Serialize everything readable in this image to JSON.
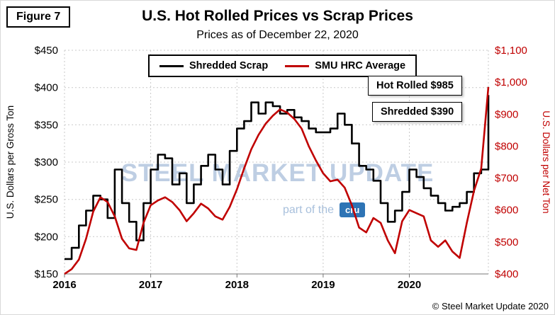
{
  "figure_label": "Figure 7",
  "title": "U.S. Hot Rolled Prices vs Scrap Prices",
  "subtitle": "Prices as of December 22, 2020",
  "legend": {
    "shredded": "Shredded Scrap",
    "hrc": "SMU HRC Average"
  },
  "annotations": {
    "hot_rolled": "Hot Rolled $985",
    "shredded": "Shredded $390"
  },
  "watermark": {
    "line1": "STEEL MARKET UPDATE",
    "part_text": "part of the",
    "cru_text": "cru"
  },
  "copyright": "© Steel Market Update 2020",
  "colors": {
    "scrap": "#000000",
    "hrc": "#C00000",
    "grid": "#c9c9c9",
    "cru_blue": "#2e74b5"
  },
  "left_axis": {
    "title": "U.S. Dollars per Gross Ton",
    "min": 150,
    "max": 450,
    "ticks": [
      {
        "label": "$150",
        "value": 150
      },
      {
        "label": "$200",
        "value": 200
      },
      {
        "label": "$250",
        "value": 250
      },
      {
        "label": "$300",
        "value": 300
      },
      {
        "label": "$350",
        "value": 350
      },
      {
        "label": "$400",
        "value": 400
      },
      {
        "label": "$450",
        "value": 450
      }
    ]
  },
  "right_axis": {
    "title": "U.S. Dollars per Net Ton",
    "min": 400,
    "max": 1100,
    "ticks": [
      {
        "label": "$400",
        "value": 400
      },
      {
        "label": "$500",
        "value": 500
      },
      {
        "label": "$600",
        "value": 600
      },
      {
        "label": "$700",
        "value": 700
      },
      {
        "label": "$800",
        "value": 800
      },
      {
        "label": "$900",
        "value": 900
      },
      {
        "label": "$1,000",
        "value": 1000
      },
      {
        "label": "$1,100",
        "value": 1100
      }
    ]
  },
  "x_axis": {
    "labels": [
      {
        "label": "2016",
        "month": 0
      },
      {
        "label": "2017",
        "month": 12
      },
      {
        "label": "2018",
        "month": 24
      },
      {
        "label": "2019",
        "month": 36
      },
      {
        "label": "2020",
        "month": 48
      }
    ]
  },
  "chart_data": {
    "type": "line",
    "x_unit": "monthly, Jan 2016 through Dec 2020",
    "x_labels": [
      "2016",
      "2017",
      "2018",
      "2019",
      "2020"
    ],
    "left_ylim": [
      150,
      450
    ],
    "right_ylim": [
      400,
      1100
    ],
    "series": [
      {
        "name": "Shredded Scrap",
        "axis": "left",
        "color": "#000000",
        "style": "step",
        "values": [
          170,
          185,
          215,
          235,
          255,
          250,
          225,
          290,
          245,
          220,
          195,
          245,
          290,
          310,
          305,
          270,
          285,
          245,
          270,
          295,
          310,
          290,
          270,
          315,
          345,
          355,
          380,
          365,
          380,
          375,
          365,
          370,
          360,
          355,
          345,
          340,
          340,
          345,
          365,
          350,
          325,
          295,
          290,
          275,
          245,
          220,
          235,
          260,
          290,
          280,
          265,
          255,
          245,
          235,
          240,
          245,
          260,
          285,
          290,
          390
        ]
      },
      {
        "name": "SMU HRC Average",
        "axis": "right",
        "color": "#C00000",
        "style": "line",
        "values": [
          400,
          415,
          445,
          510,
          595,
          640,
          625,
          580,
          510,
          480,
          475,
          560,
          615,
          630,
          640,
          625,
          600,
          565,
          590,
          620,
          605,
          580,
          570,
          610,
          665,
          730,
          790,
          835,
          870,
          895,
          915,
          905,
          885,
          855,
          800,
          755,
          715,
          690,
          695,
          670,
          615,
          545,
          530,
          575,
          560,
          505,
          465,
          565,
          600,
          590,
          580,
          505,
          485,
          505,
          470,
          450,
          560,
          660,
          730,
          985
        ]
      }
    ],
    "final_values": {
      "Shredded Scrap": 390,
      "SMU HRC Average": 985
    }
  }
}
